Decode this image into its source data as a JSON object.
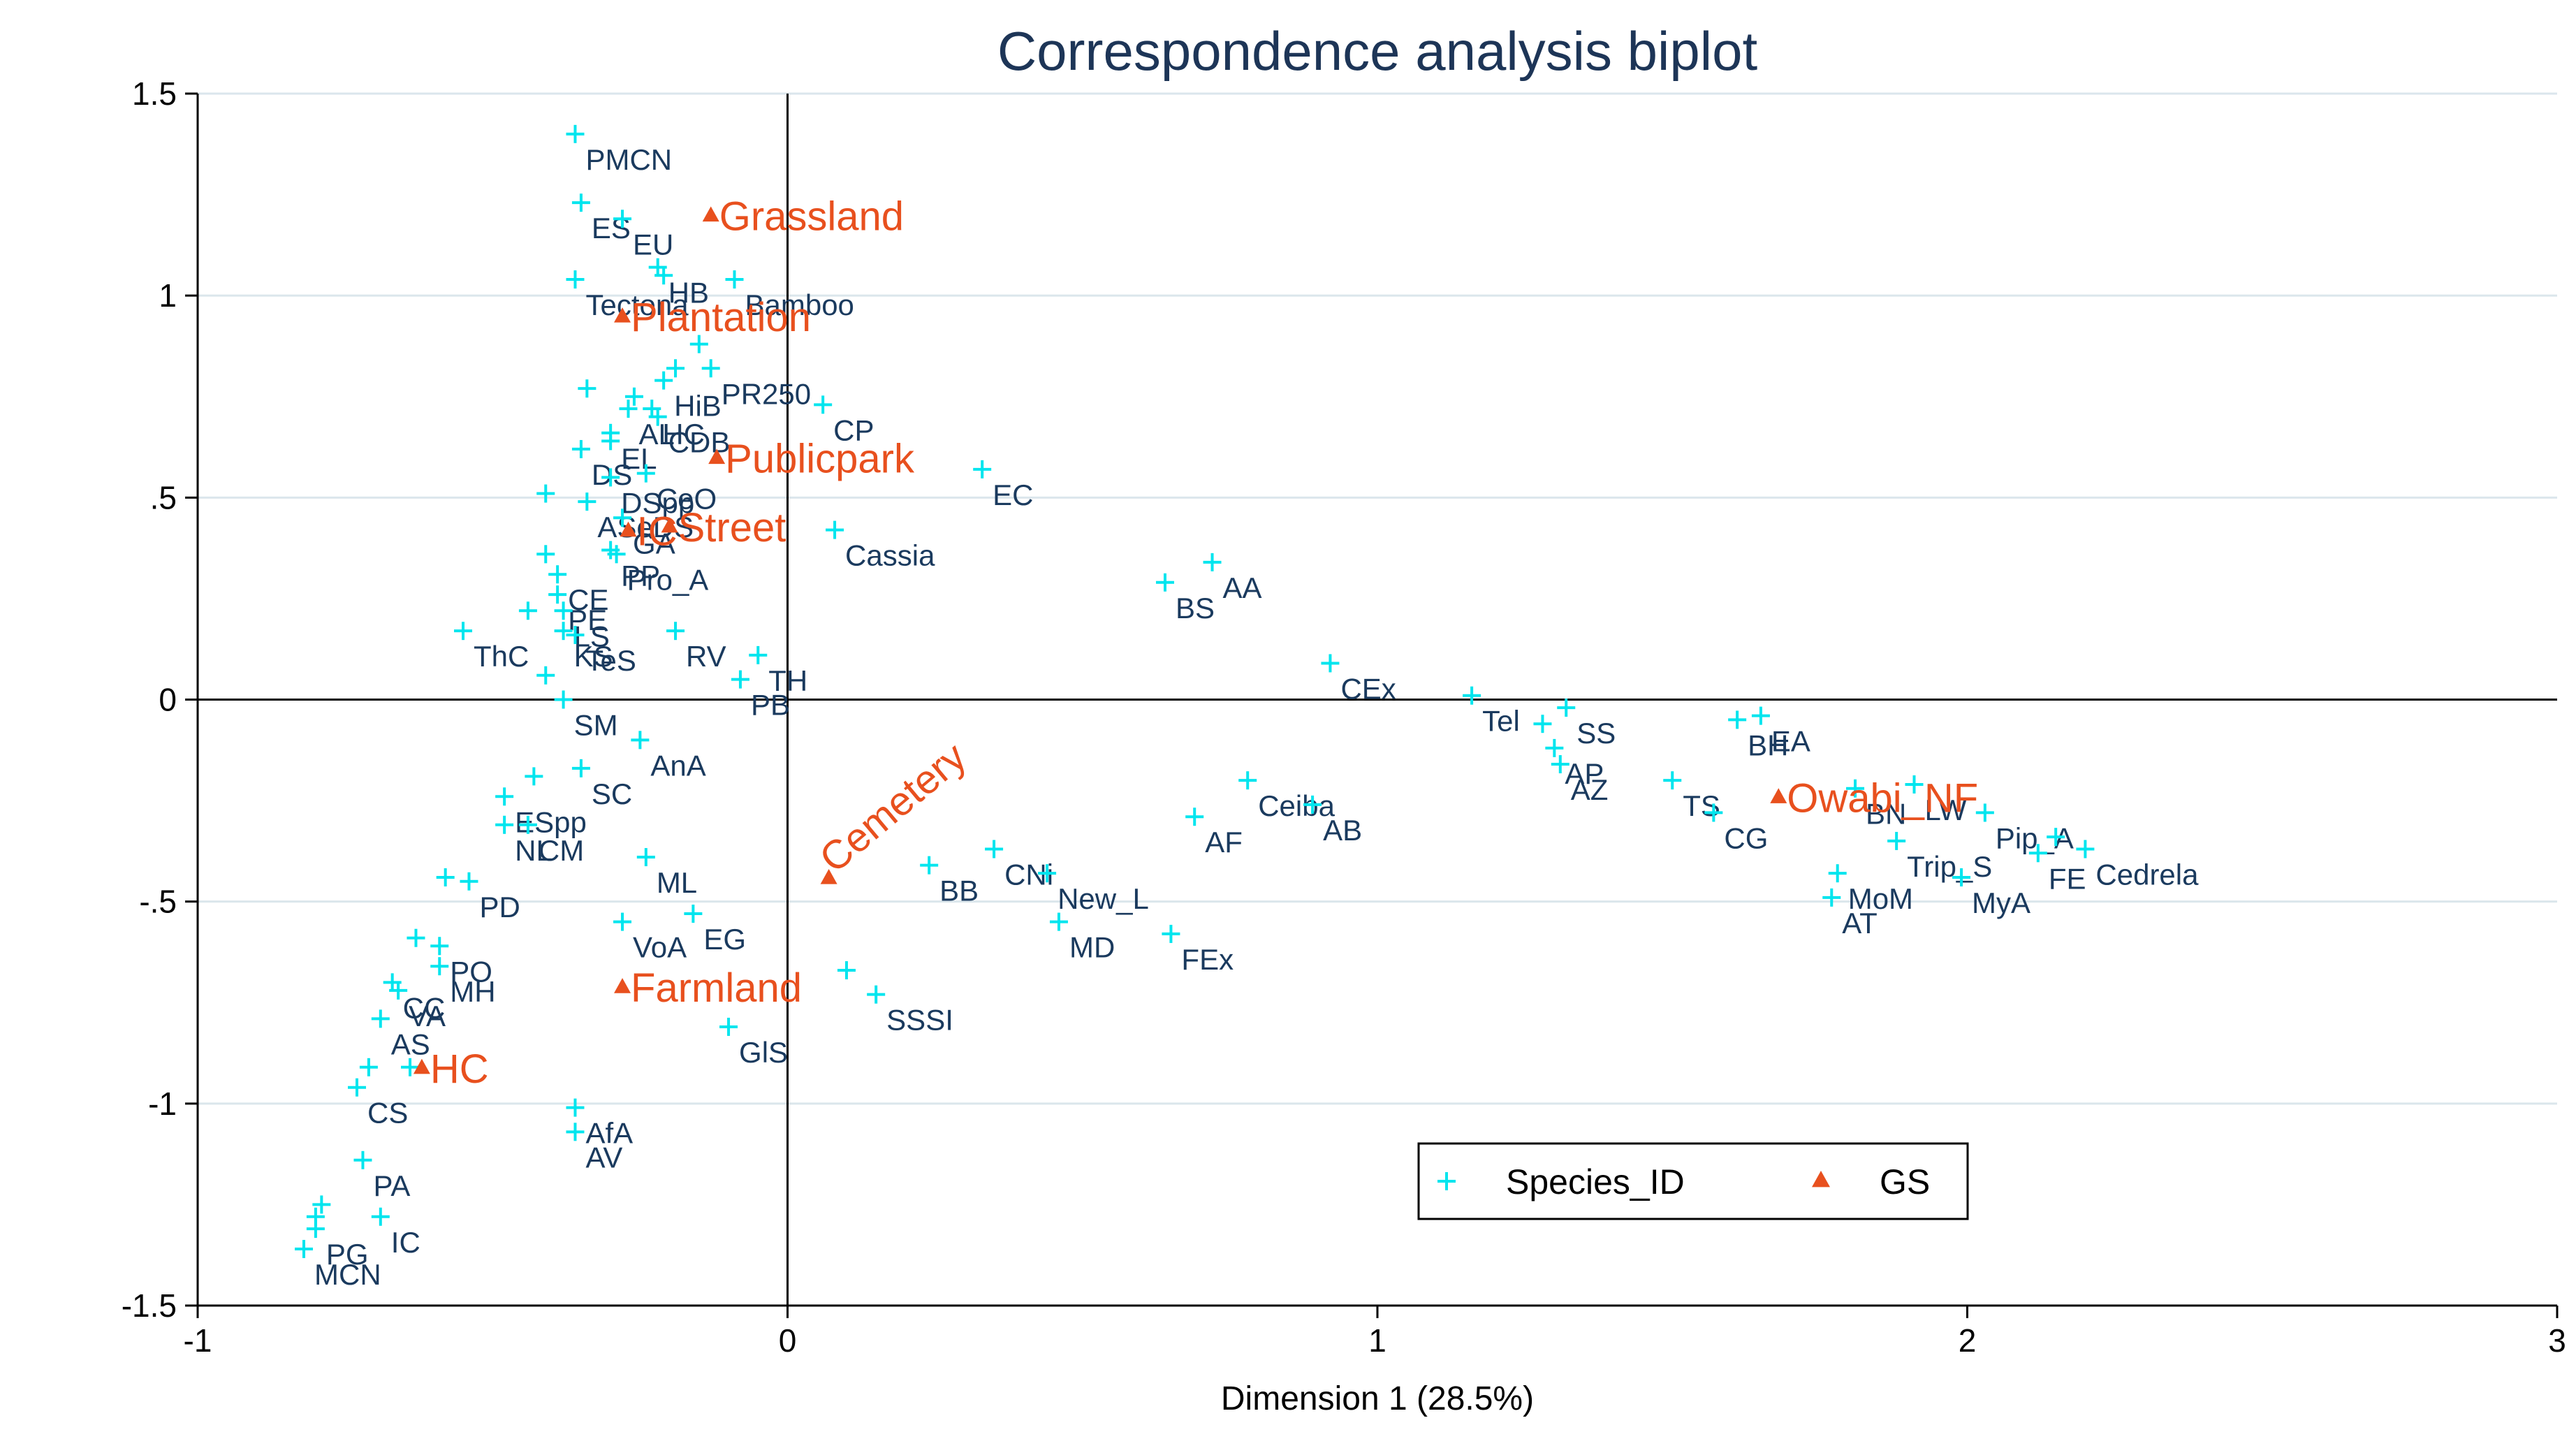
{
  "chart_data": {
    "type": "scatter",
    "title": "Correspondence analysis biplot",
    "xlabel": "Dimension 1 (28.5%)",
    "ylabel": "",
    "xlim": [
      -1,
      3
    ],
    "ylim": [
      -1.5,
      1.5
    ],
    "xticks": [
      -1,
      0,
      1,
      2,
      3
    ],
    "xtick_labels": [
      "-1",
      "0",
      "1",
      "2",
      "3"
    ],
    "yticks": [
      1.5,
      1,
      0.5,
      0,
      -0.5,
      -1,
      -1.5
    ],
    "ytick_labels": [
      "1.5",
      "1",
      ".5",
      "0",
      "-.5",
      "-1",
      "-1.5"
    ],
    "grid": true,
    "legend_position": "bottom-right",
    "colors": {
      "species": "#00e5ee",
      "gs": "#e8501e",
      "species_text": "#1a3a5e",
      "title": "#1d3557",
      "grid": "#dbe6ec"
    },
    "series": [
      {
        "name": "Species_ID",
        "marker": "plus",
        "points": [
          {
            "x": -0.36,
            "y": 1.4,
            "label": "PMCN"
          },
          {
            "x": -0.35,
            "y": 1.23,
            "label": "ES"
          },
          {
            "x": -0.28,
            "y": 1.19,
            "label": "EU"
          },
          {
            "x": -0.22,
            "y": 1.07,
            "label": "HB"
          },
          {
            "x": -0.21,
            "y": 1.05,
            "label": ""
          },
          {
            "x": -0.36,
            "y": 1.04,
            "label": "Tectona"
          },
          {
            "x": -0.09,
            "y": 1.04,
            "label": "Bamboo"
          },
          {
            "x": -0.15,
            "y": 0.88,
            "label": ""
          },
          {
            "x": -0.19,
            "y": 0.82,
            "label": ""
          },
          {
            "x": -0.13,
            "y": 0.82,
            "label": "PR250"
          },
          {
            "x": -0.21,
            "y": 0.79,
            "label": "HiB"
          },
          {
            "x": -0.34,
            "y": 0.77,
            "label": ""
          },
          {
            "x": -0.26,
            "y": 0.75,
            "label": ""
          },
          {
            "x": -0.27,
            "y": 0.72,
            "label": "AL"
          },
          {
            "x": -0.23,
            "y": 0.72,
            "label": "HC"
          },
          {
            "x": 0.06,
            "y": 0.73,
            "label": "CP"
          },
          {
            "x": -0.22,
            "y": 0.7,
            "label": "CDB"
          },
          {
            "x": -0.3,
            "y": 0.66,
            "label": "EL"
          },
          {
            "x": -0.35,
            "y": 0.62,
            "label": "DS"
          },
          {
            "x": -0.3,
            "y": 0.64,
            "label": ""
          },
          {
            "x": -0.3,
            "y": 0.55,
            "label": "DSpp"
          },
          {
            "x": -0.24,
            "y": 0.56,
            "label": "CeO"
          },
          {
            "x": 0.33,
            "y": 0.57,
            "label": "EC"
          },
          {
            "x": -0.41,
            "y": 0.51,
            "label": ""
          },
          {
            "x": -0.34,
            "y": 0.49,
            "label": "ASeDS"
          },
          {
            "x": -0.28,
            "y": 0.45,
            "label": "GA"
          },
          {
            "x": -0.3,
            "y": 0.37,
            "label": "PP"
          },
          {
            "x": -0.29,
            "y": 0.36,
            "label": "Pro_A"
          },
          {
            "x": 0.08,
            "y": 0.42,
            "label": "Cassia"
          },
          {
            "x": -0.41,
            "y": 0.36,
            "label": ""
          },
          {
            "x": -0.39,
            "y": 0.31,
            "label": "CE"
          },
          {
            "x": -0.39,
            "y": 0.26,
            "label": "PE"
          },
          {
            "x": -0.44,
            "y": 0.22,
            "label": ""
          },
          {
            "x": -0.38,
            "y": 0.22,
            "label": "LS"
          },
          {
            "x": -0.55,
            "y": 0.17,
            "label": "ThC"
          },
          {
            "x": -0.38,
            "y": 0.17,
            "label": "KS"
          },
          {
            "x": -0.36,
            "y": 0.16,
            "label": "TeS"
          },
          {
            "x": -0.19,
            "y": 0.17,
            "label": "RV"
          },
          {
            "x": -0.41,
            "y": 0.06,
            "label": ""
          },
          {
            "x": -0.05,
            "y": 0.11,
            "label": "TH"
          },
          {
            "x": -0.08,
            "y": 0.05,
            "label": "PB"
          },
          {
            "x": -0.38,
            "y": 0.0,
            "label": "SM"
          },
          {
            "x": 0.64,
            "y": 0.29,
            "label": "BS"
          },
          {
            "x": 0.72,
            "y": 0.34,
            "label": "AA"
          },
          {
            "x": 0.92,
            "y": 0.09,
            "label": "CEx"
          },
          {
            "x": 1.16,
            "y": 0.01,
            "label": "Tel"
          },
          {
            "x": 1.32,
            "y": -0.02,
            "label": "SS"
          },
          {
            "x": 1.28,
            "y": -0.06,
            "label": ""
          },
          {
            "x": 1.3,
            "y": -0.12,
            "label": "AP"
          },
          {
            "x": 1.31,
            "y": -0.16,
            "label": "AZ"
          },
          {
            "x": 1.61,
            "y": -0.05,
            "label": "BH"
          },
          {
            "x": 1.65,
            "y": -0.04,
            "label": "EA"
          },
          {
            "x": -0.25,
            "y": -0.1,
            "label": "AnA"
          },
          {
            "x": -0.35,
            "y": -0.17,
            "label": "SC"
          },
          {
            "x": -0.43,
            "y": -0.19,
            "label": ""
          },
          {
            "x": -0.48,
            "y": -0.24,
            "label": "ESpp"
          },
          {
            "x": -0.44,
            "y": -0.31,
            "label": "CM"
          },
          {
            "x": -0.48,
            "y": -0.31,
            "label": "NL"
          },
          {
            "x": -0.24,
            "y": -0.39,
            "label": "ML"
          },
          {
            "x": -0.58,
            "y": -0.44,
            "label": ""
          },
          {
            "x": -0.54,
            "y": -0.45,
            "label": "PD"
          },
          {
            "x": -0.16,
            "y": -0.53,
            "label": "EG"
          },
          {
            "x": -0.28,
            "y": -0.55,
            "label": "VoA"
          },
          {
            "x": -0.63,
            "y": -0.59,
            "label": ""
          },
          {
            "x": -0.59,
            "y": -0.61,
            "label": "PO"
          },
          {
            "x": -0.59,
            "y": -0.66,
            "label": "MH"
          },
          {
            "x": -0.67,
            "y": -0.7,
            "label": "CC"
          },
          {
            "x": -0.66,
            "y": -0.72,
            "label": "VA"
          },
          {
            "x": -0.69,
            "y": -0.79,
            "label": "AS"
          },
          {
            "x": -0.64,
            "y": -0.91,
            "label": ""
          },
          {
            "x": -0.71,
            "y": -0.91,
            "label": ""
          },
          {
            "x": -0.73,
            "y": -0.96,
            "label": "CS"
          },
          {
            "x": -0.36,
            "y": -1.01,
            "label": "AfA"
          },
          {
            "x": -0.36,
            "y": -1.07,
            "label": "AV"
          },
          {
            "x": -0.72,
            "y": -1.14,
            "label": "PA"
          },
          {
            "x": -0.79,
            "y": -1.25,
            "label": ""
          },
          {
            "x": -0.8,
            "y": -1.28,
            "label": ""
          },
          {
            "x": -0.69,
            "y": -1.28,
            "label": "IC"
          },
          {
            "x": -0.8,
            "y": -1.31,
            "label": "PG"
          },
          {
            "x": -0.82,
            "y": -1.36,
            "label": "MCN"
          },
          {
            "x": 0.1,
            "y": -0.67,
            "label": ""
          },
          {
            "x": 0.15,
            "y": -0.73,
            "label": "SSSI"
          },
          {
            "x": -0.1,
            "y": -0.81,
            "label": "GlS"
          },
          {
            "x": 0.24,
            "y": -0.41,
            "label": "BB"
          },
          {
            "x": 0.35,
            "y": -0.37,
            "label": "CNi"
          },
          {
            "x": 0.44,
            "y": -0.43,
            "label": "New_L"
          },
          {
            "x": 0.46,
            "y": -0.55,
            "label": "MD"
          },
          {
            "x": 0.65,
            "y": -0.58,
            "label": "FEx"
          },
          {
            "x": 0.69,
            "y": -0.29,
            "label": "AF"
          },
          {
            "x": 0.78,
            "y": -0.2,
            "label": "Ceiba"
          },
          {
            "x": 0.89,
            "y": -0.26,
            "label": "AB"
          },
          {
            "x": 1.5,
            "y": -0.2,
            "label": "TS"
          },
          {
            "x": 1.57,
            "y": -0.28,
            "label": "CG"
          },
          {
            "x": 1.81,
            "y": -0.22,
            "label": "BN"
          },
          {
            "x": 1.91,
            "y": -0.21,
            "label": "LW"
          },
          {
            "x": 1.88,
            "y": -0.35,
            "label": "Trip_S"
          },
          {
            "x": 2.03,
            "y": -0.28,
            "label": "Pip_A"
          },
          {
            "x": 1.99,
            "y": -0.44,
            "label": "MyA"
          },
          {
            "x": 1.78,
            "y": -0.43,
            "label": "MoM"
          },
          {
            "x": 1.77,
            "y": -0.49,
            "label": "AT"
          },
          {
            "x": 2.15,
            "y": -0.34,
            "label": ""
          },
          {
            "x": 2.12,
            "y": -0.38,
            "label": "FE"
          },
          {
            "x": 2.2,
            "y": -0.37,
            "label": "Cedrela"
          }
        ]
      },
      {
        "name": "GS",
        "marker": "triangle",
        "points": [
          {
            "x": -0.13,
            "y": 1.2,
            "label": "Grassland"
          },
          {
            "x": -0.28,
            "y": 0.95,
            "label": "Plantation"
          },
          {
            "x": -0.12,
            "y": 0.6,
            "label": "Publicpark"
          },
          {
            "x": -0.2,
            "y": 0.43,
            "label": "Street"
          },
          {
            "x": -0.27,
            "y": 0.42,
            "label": "IC"
          },
          {
            "x": 0.07,
            "y": -0.44,
            "label": "Cemetery"
          },
          {
            "x": -0.28,
            "y": -0.71,
            "label": "Farmland"
          },
          {
            "x": -0.62,
            "y": -0.91,
            "label": "HC"
          },
          {
            "x": 1.68,
            "y": -0.24,
            "label": "Owabi_NF"
          }
        ]
      }
    ]
  }
}
